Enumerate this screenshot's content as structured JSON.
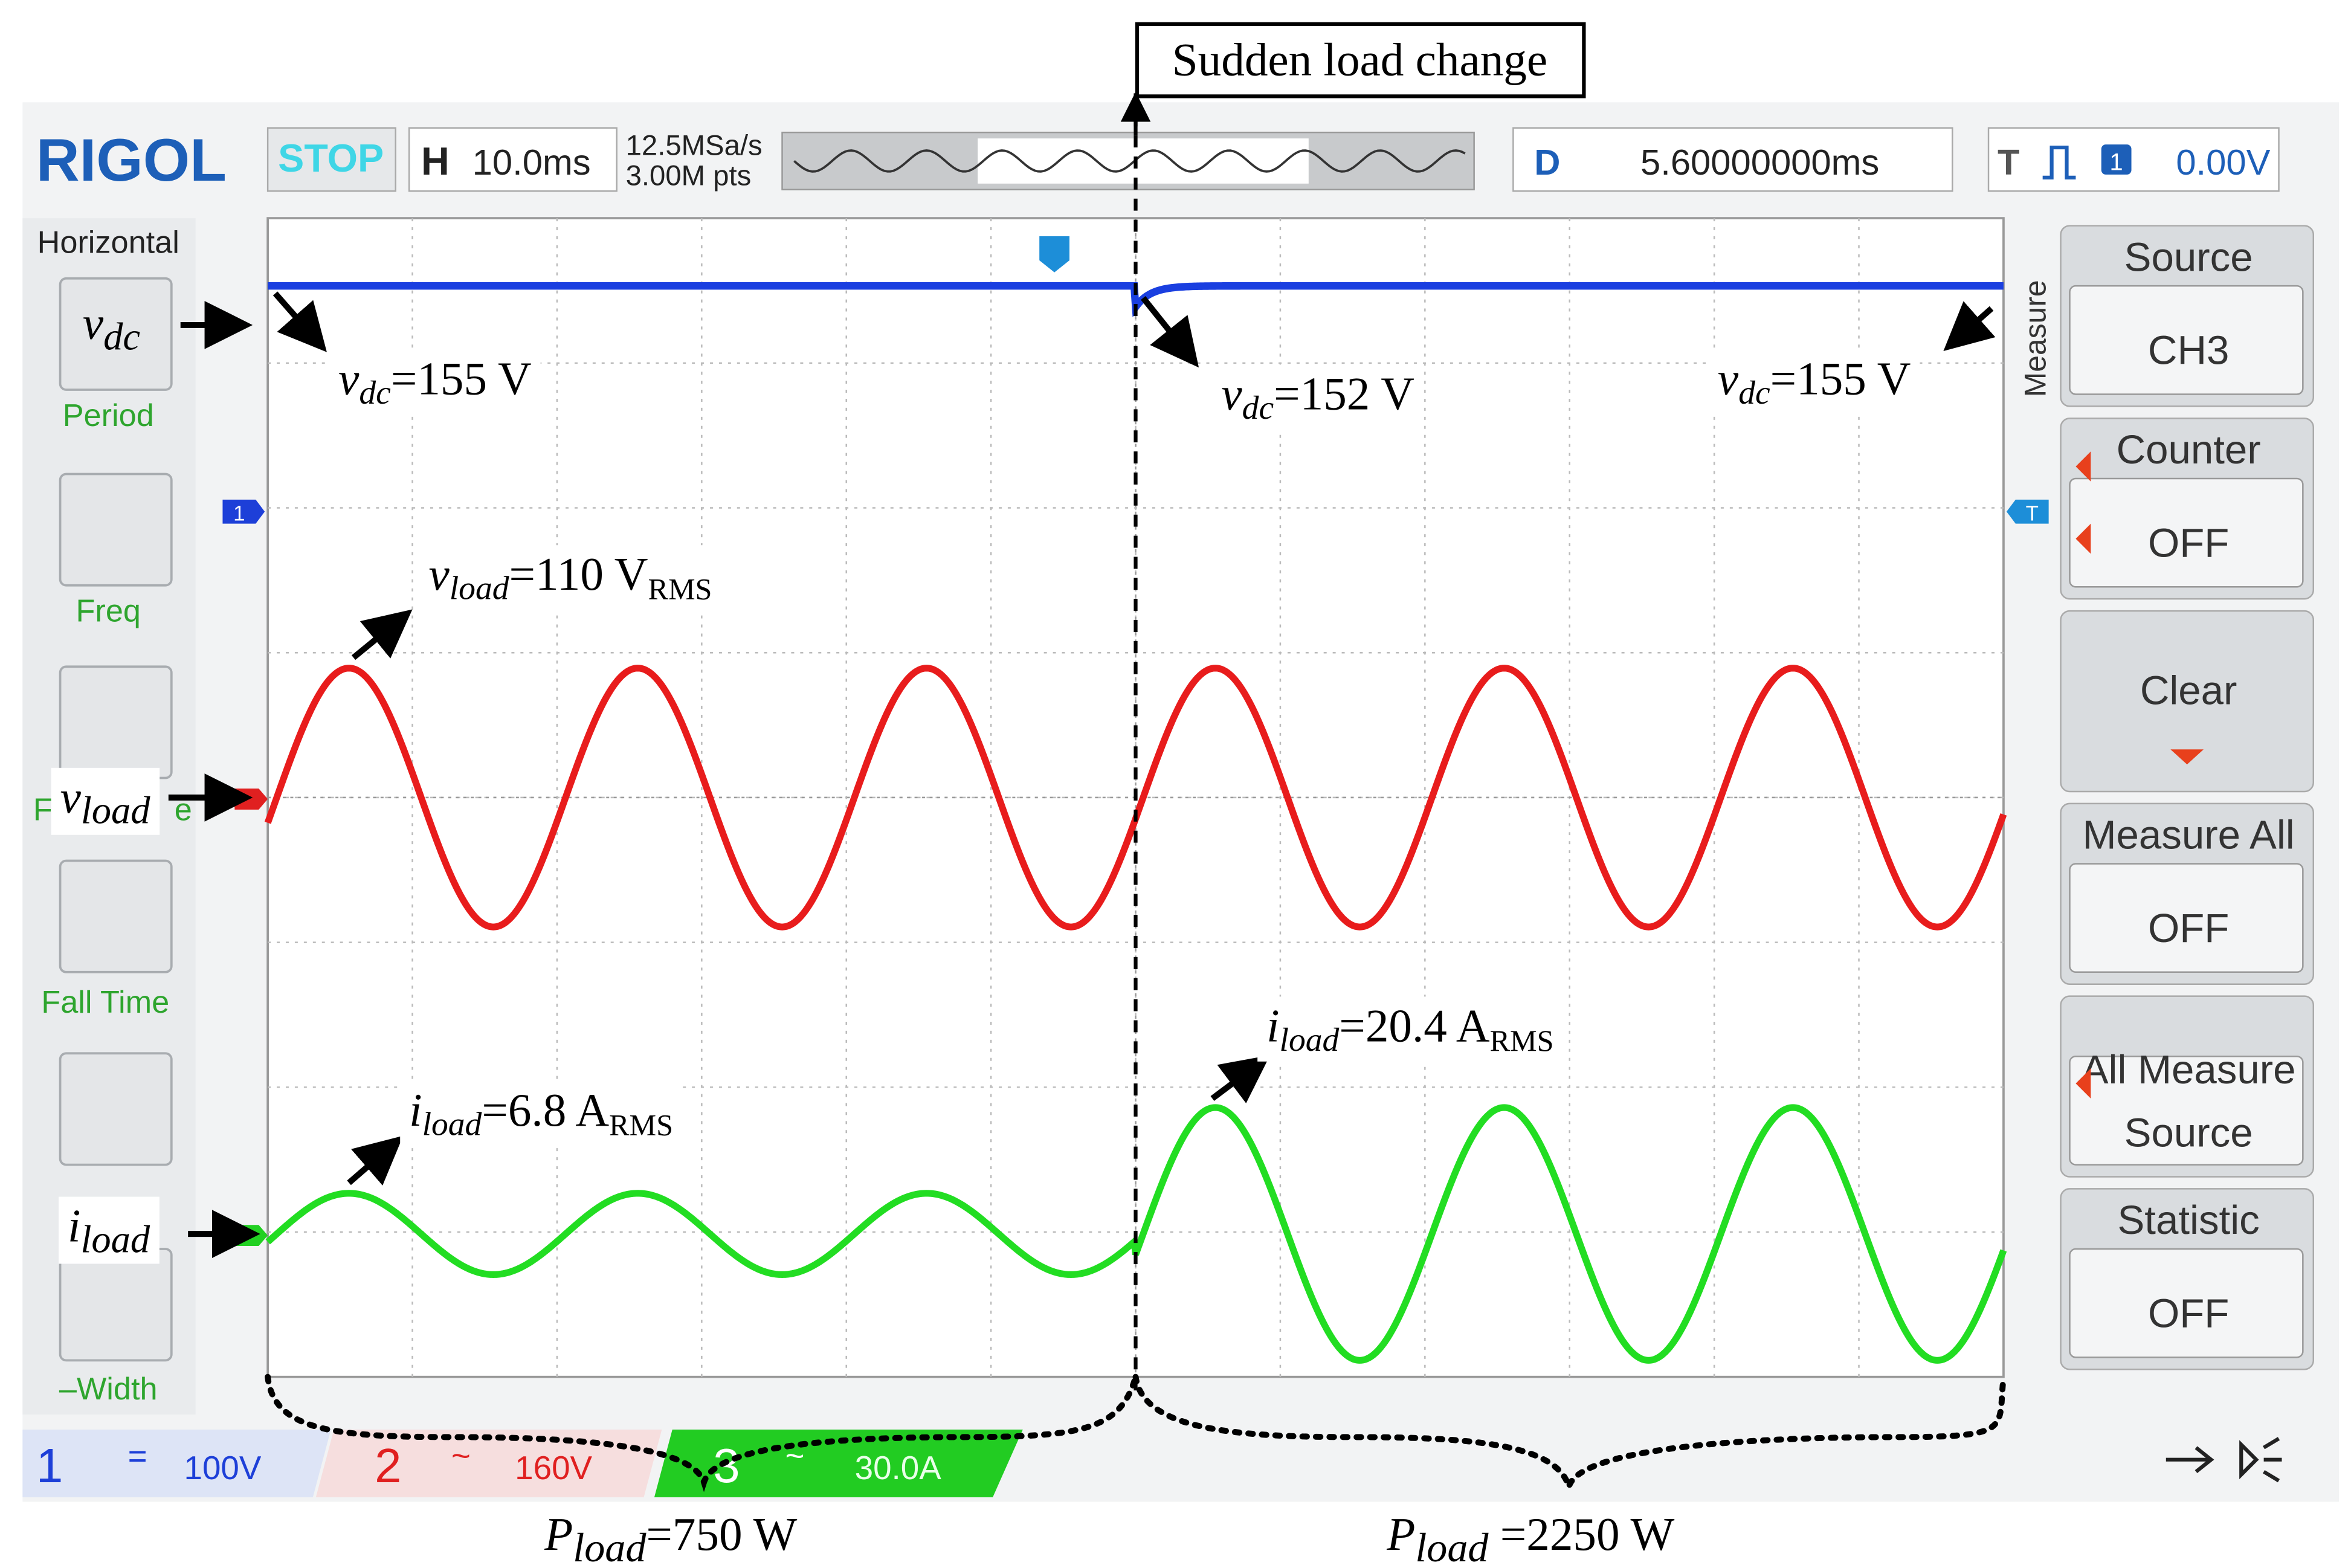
{
  "header": {
    "brand": "RIGOL",
    "status": "STOP",
    "h_label": "H",
    "timebase": "10.0ms",
    "sample_rate": "12.5MSa/s",
    "memory": "3.00M pts",
    "d_label": "D",
    "delay": "5.60000000ms",
    "t_label": "T",
    "trigger_channel": "1",
    "trigger_level": "0.00V"
  },
  "left_menu": {
    "title": "Horizontal",
    "items": [
      "Period",
      "Freq",
      "F",
      "e",
      "Fall Time",
      "–Width"
    ]
  },
  "right_menu": {
    "title": "Measure",
    "buttons": [
      {
        "label": "Source",
        "value": "CH3"
      },
      {
        "label": "Counter",
        "value": "OFF"
      },
      {
        "label": "Clear"
      },
      {
        "label": "Measure All",
        "value": "OFF"
      },
      {
        "label": "All Measure",
        "value": "Source"
      },
      {
        "label": "Statistic",
        "value": "OFF"
      }
    ]
  },
  "channels": [
    {
      "number": "1",
      "coupling": "=",
      "scale": "100V"
    },
    {
      "number": "2",
      "coupling": "~",
      "scale": "160V"
    },
    {
      "number": "3",
      "coupling": "~",
      "scale": "30.0A"
    }
  ],
  "markers": {
    "ch1": "1",
    "trigger": "T"
  },
  "annotations": {
    "event": "Sudden load change",
    "vdc_start": {
      "symbol": "v",
      "sub": "dc",
      "text": "=155 V"
    },
    "vdc_dip": {
      "symbol": "v",
      "sub": "dc",
      "text": "=152 V"
    },
    "vdc_end": {
      "symbol": "v",
      "sub": "dc",
      "text": "=155 V"
    },
    "vload": {
      "symbol": "v",
      "sub": "load",
      "text": "=110 V",
      "text_sub": "RMS"
    },
    "iload_low": {
      "symbol": "i",
      "sub": "load",
      "text": "=6.8 A",
      "text_sub": "RMS"
    },
    "iload_high": {
      "symbol": "i",
      "sub": "load",
      "text": "=20.4 A",
      "text_sub": "RMS"
    },
    "pload_low": {
      "symbol": "P",
      "sub": "load",
      "text": "=750 W"
    },
    "pload_high": {
      "symbol": "P",
      "sub": "load",
      "text": " =2250 W"
    },
    "label_vdc": {
      "symbol": "v",
      "sub": "dc"
    },
    "label_vload": {
      "symbol": "v",
      "sub": "load"
    },
    "label_iload": {
      "symbol": "i",
      "sub": "load"
    }
  }
}
